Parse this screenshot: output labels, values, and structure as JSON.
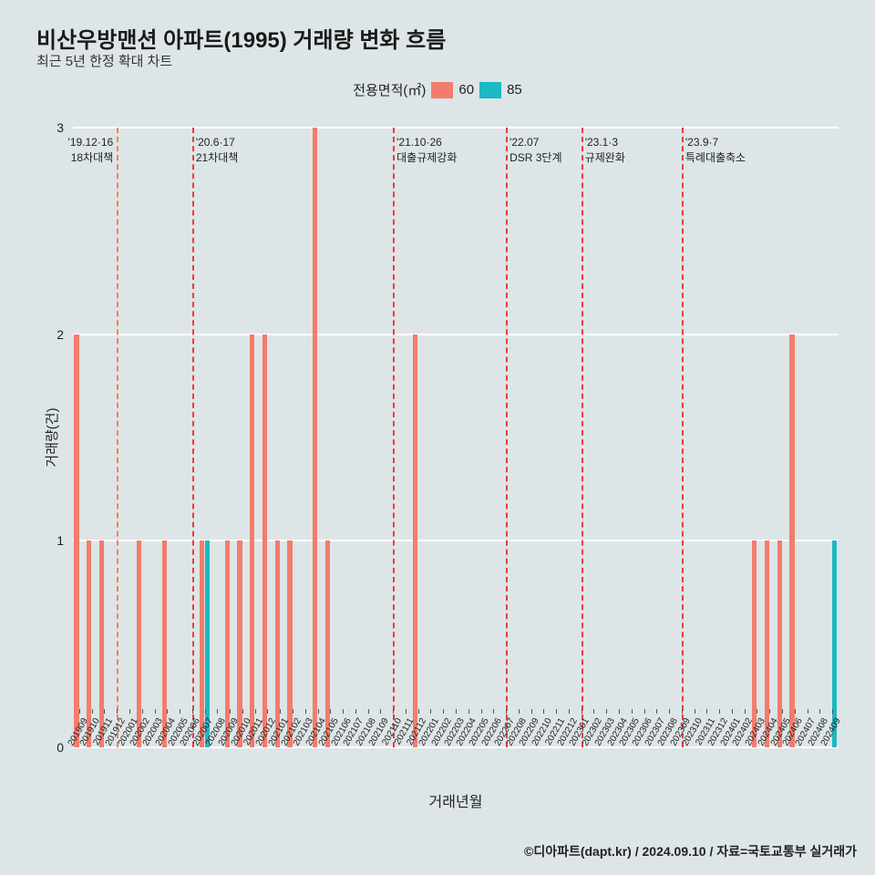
{
  "title": "비산우방맨션 아파트(1995) 거래량 변화 흐름",
  "subtitle": "최근 5년 한정 확대 차트",
  "legend": {
    "label": "전용면적(㎡)",
    "items": [
      {
        "name": "60",
        "color": "#f47c6c"
      },
      {
        "name": "85",
        "color": "#1cb8c4"
      }
    ]
  },
  "chart": {
    "type": "bar",
    "background_color": "#dde5e7",
    "grid_color": "#ffffff",
    "ylim": [
      0,
      3
    ],
    "yticks": [
      0,
      1,
      2,
      3
    ],
    "ylabel": "거래량(건)",
    "xlabel": "거래년월",
    "x_categories": [
      "201909",
      "201910",
      "201911",
      "201912",
      "202001",
      "202002",
      "202003",
      "202004",
      "202005",
      "202006",
      "202007",
      "202008",
      "202009",
      "202010",
      "202011",
      "202012",
      "202101",
      "202102",
      "202103",
      "202104",
      "202105",
      "202106",
      "202107",
      "202108",
      "202109",
      "202110",
      "202111",
      "202112",
      "202201",
      "202202",
      "202203",
      "202204",
      "202205",
      "202206",
      "202207",
      "202208",
      "202209",
      "202210",
      "202211",
      "202212",
      "202301",
      "202302",
      "202303",
      "202304",
      "202305",
      "202306",
      "202307",
      "202308",
      "202309",
      "202310",
      "202311",
      "202312",
      "202401",
      "202402",
      "202403",
      "202404",
      "202405",
      "202406",
      "202407",
      "202408",
      "202409"
    ],
    "series": [
      {
        "name": "60",
        "color": "#f47c6c",
        "values": [
          2,
          1,
          1,
          0,
          0,
          1,
          0,
          1,
          0,
          0,
          1,
          0,
          1,
          1,
          2,
          2,
          1,
          1,
          0,
          3,
          1,
          0,
          0,
          0,
          0,
          0,
          0,
          2,
          0,
          0,
          0,
          0,
          0,
          0,
          0,
          0,
          0,
          0,
          0,
          0,
          0,
          0,
          0,
          0,
          0,
          0,
          0,
          0,
          0,
          0,
          0,
          0,
          0,
          0,
          1,
          1,
          1,
          2,
          0,
          0,
          0
        ]
      },
      {
        "name": "85",
        "color": "#1cb8c4",
        "values": [
          0,
          0,
          0,
          0,
          0,
          0,
          0,
          0,
          0,
          0,
          1,
          0,
          0,
          0,
          0,
          0,
          0,
          0,
          0,
          0,
          0,
          0,
          0,
          0,
          0,
          0,
          0,
          0,
          0,
          0,
          0,
          0,
          0,
          0,
          0,
          0,
          0,
          0,
          0,
          0,
          0,
          0,
          0,
          0,
          0,
          0,
          0,
          0,
          0,
          0,
          0,
          0,
          0,
          0,
          0,
          0,
          0,
          0,
          0,
          0,
          1
        ]
      }
    ],
    "vlines": [
      {
        "x": "201912",
        "label_top": "'19.12·16",
        "label_bottom": "18차대책",
        "color": "#f5824a",
        "label_side": "left"
      },
      {
        "x": "202006",
        "label_top": "'20.6·17",
        "label_bottom": "21차대책",
        "color": "#ee3b3b",
        "label_side": "right"
      },
      {
        "x": "202110",
        "label_top": "'21.10·26",
        "label_bottom": "대출규제강화",
        "color": "#ee3b3b",
        "label_side": "right"
      },
      {
        "x": "202207",
        "label_top": "'22.07",
        "label_bottom": "DSR 3단계",
        "color": "#ee3b3b",
        "label_side": "right"
      },
      {
        "x": "202301",
        "label_top": "'23.1·3",
        "label_bottom": "규제완화",
        "color": "#ee3b3b",
        "label_side": "right"
      },
      {
        "x": "202309",
        "label_top": "'23.9·7",
        "label_bottom": "특례대출축소",
        "color": "#ee3b3b",
        "label_side": "right"
      }
    ]
  },
  "credit": "©디아파트(dapt.kr) / 2024.09.10 / 자료=국토교통부 실거래가"
}
